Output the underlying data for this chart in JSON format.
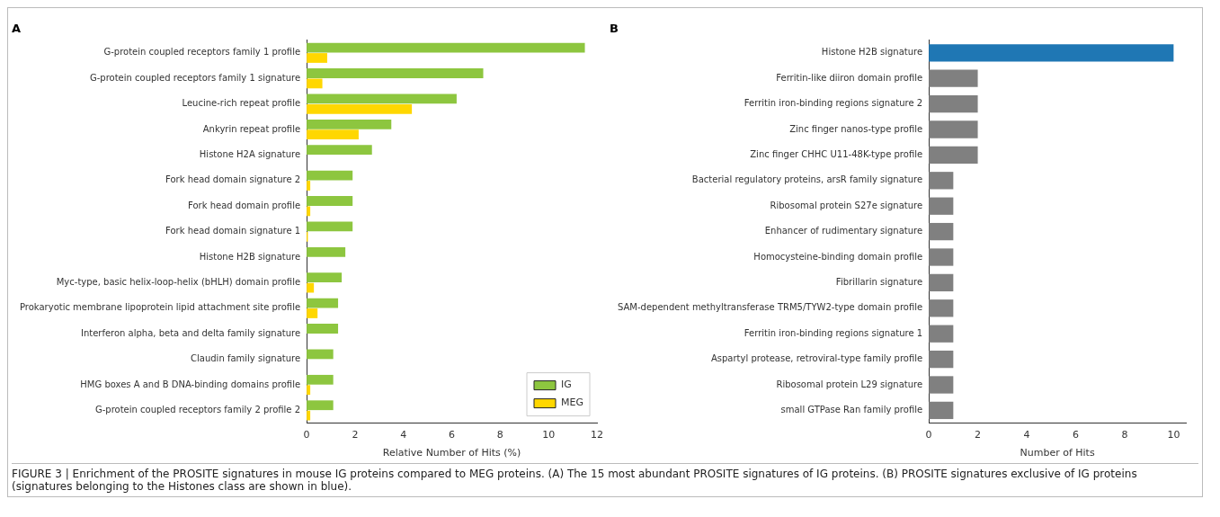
{
  "chart_data": [
    {
      "type": "bar",
      "orientation": "horizontal",
      "title": "A",
      "xlabel": "Relative Number of Hits (%)",
      "categories": [
        "G-protein coupled receptors family 1 profile",
        "G-protein coupled receptors family 1 signature",
        "Leucine-rich repeat profile",
        "Ankyrin repeat profile",
        "Histone H2A signature",
        "Fork head domain signature 2",
        "Fork head domain profile",
        "Fork head domain signature 1",
        "Histone H2B signature",
        "Myc-type, basic helix-loop-helix (bHLH) domain profile",
        "Prokaryotic membrane lipoprotein lipid attachment site profile",
        "Interferon alpha, beta and delta family signature",
        "Claudin family signature",
        "HMG boxes A and B DNA-binding domains profile",
        "G-protein coupled receptors family 2 profile 2"
      ],
      "series": [
        {
          "name": "IG",
          "color": "#8dc63f",
          "values": [
            11.5,
            7.3,
            6.2,
            3.5,
            2.7,
            1.9,
            1.9,
            1.9,
            1.6,
            1.45,
            1.3,
            1.3,
            1.1,
            1.1,
            1.1
          ]
        },
        {
          "name": "MEG",
          "color": "#ffd700",
          "values": [
            0.85,
            0.65,
            4.35,
            2.15,
            0,
            0.15,
            0.15,
            0.05,
            0,
            0.3,
            0.45,
            0,
            0,
            0.15,
            0.15
          ]
        }
      ],
      "xlim": [
        0,
        12
      ],
      "xticks": [
        0,
        2,
        4,
        6,
        8,
        10,
        12
      ],
      "legend": "bottom right",
      "grid": false,
      "annotations": [
        "FIGURE 3 | Enrichment of the PROSITE signatures in mouse IG proteins compared to MEG proteins. (A) The 15 most abundant PROSITE signatures of IG proteins. (B) PROSITE signatures exclusive of IG proteins (signatures belonging to the Histones class are shown in blue)."
      ]
    },
    {
      "type": "bar",
      "orientation": "horizontal",
      "title": "B",
      "xlabel": "Number of Hits",
      "categories": [
        "Histone H2B signature",
        "Ferritin-like diiron domain profile",
        "Ferritin iron-binding regions signature 2",
        "Zinc finger nanos-type profile",
        "Zinc finger CHHC U11-48K-type profile",
        "Bacterial regulatory proteins, arsR family signature",
        "Ribosomal protein S27e signature",
        "Enhancer of rudimentary signature",
        "Homocysteine-binding domain profile",
        "Fibrillarin signature",
        "SAM-dependent methyltransferase TRM5/TYW2-type domain profile",
        "Ferritin iron-binding regions signature 1",
        "Aspartyl protease, retroviral-type family profile",
        "Ribosomal protein L29 signature",
        "small GTPase Ran family profile"
      ],
      "values": [
        10,
        2,
        2,
        2,
        2,
        1,
        1,
        1,
        1,
        1,
        1,
        1,
        1,
        1,
        1
      ],
      "colors": [
        "#1f77b4",
        "#808080",
        "#808080",
        "#808080",
        "#808080",
        "#808080",
        "#808080",
        "#808080",
        "#808080",
        "#808080",
        "#808080",
        "#808080",
        "#808080",
        "#808080",
        "#808080"
      ],
      "xlim": [
        0,
        10.5
      ],
      "xticks": [
        0,
        2,
        4,
        6,
        8,
        10
      ],
      "grid": false
    }
  ]
}
